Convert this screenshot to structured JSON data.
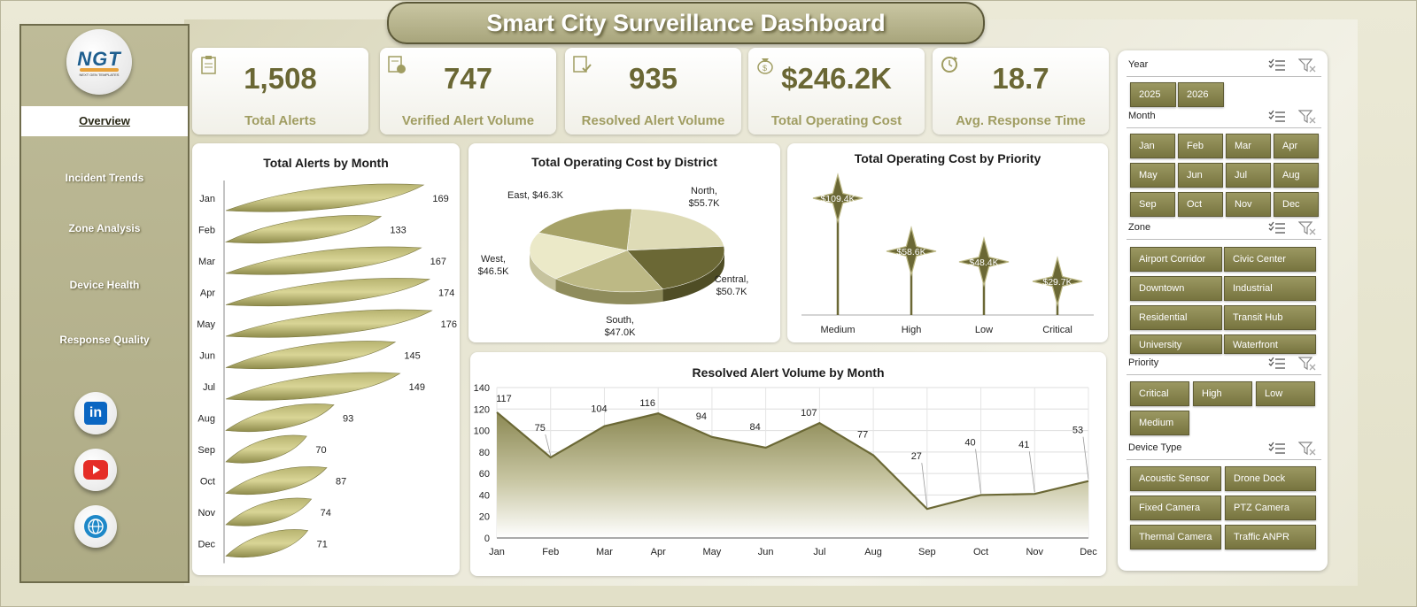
{
  "title": "Smart City Surveillance Dashboard",
  "logo": {
    "text": "NGT",
    "subtext": "NEXT GEN TEMPLATES"
  },
  "nav": {
    "items": [
      {
        "label": "Overview",
        "active": true
      },
      {
        "label": "Incident Trends",
        "active": false
      },
      {
        "label": "Zone Analysis",
        "active": false
      },
      {
        "label": "Device Health",
        "active": false
      },
      {
        "label": "Response Quality",
        "active": false
      }
    ],
    "social": [
      {
        "icon": "linkedin-icon",
        "label": "in",
        "color": "#0a66c2"
      },
      {
        "icon": "youtube-icon",
        "color": "#e52d27"
      },
      {
        "icon": "globe-icon",
        "color": "#1e88c8"
      }
    ]
  },
  "kpis": [
    {
      "value": "1,508",
      "label": "Total Alerts",
      "icon": "clipboard-icon"
    },
    {
      "value": "747",
      "label": "Verified Alert Volume",
      "icon": "verified-doc-icon"
    },
    {
      "value": "935",
      "label": "Resolved Alert Volume",
      "icon": "resolved-doc-icon"
    },
    {
      "value": "$246.2K",
      "label": "Total Operating Cost",
      "icon": "money-bag-icon"
    },
    {
      "value": "18.7",
      "label": "Avg. Response Time",
      "icon": "refresh-clock-icon"
    }
  ],
  "colors": {
    "accent": "#6a6734",
    "chip": "#8a8752",
    "panel": "#ffffff"
  },
  "chart_data": [
    {
      "type": "bar",
      "title": "Total Alerts by Month",
      "categories": [
        "Jan",
        "Feb",
        "Mar",
        "Apr",
        "May",
        "Jun",
        "Jul",
        "Aug",
        "Sep",
        "Oct",
        "Nov",
        "Dec"
      ],
      "values": [
        169,
        133,
        167,
        174,
        176,
        145,
        149,
        93,
        70,
        87,
        74,
        71
      ],
      "orientation": "horizontal"
    },
    {
      "type": "pie",
      "title": "Total Operating  Cost by District",
      "slices": [
        {
          "label": "North,",
          "value_label": "$55.7K",
          "value": 55.7
        },
        {
          "label": "Central,",
          "value_label": "$50.7K",
          "value": 50.7
        },
        {
          "label": "South,",
          "value_label": "$47.0K",
          "value": 47.0
        },
        {
          "label": "West,",
          "value_label": "$46.5K",
          "value": 46.5
        },
        {
          "label": "East,",
          "value_label": "$46.3K",
          "value": 46.3
        }
      ]
    },
    {
      "type": "bar",
      "title": "Total Operating Cost by Priority",
      "categories": [
        "Medium",
        "High",
        "Low",
        "Critical"
      ],
      "values": [
        109.4,
        58.6,
        48.4,
        29.7
      ],
      "value_labels": [
        "$109.4K",
        "$58.6K",
        "$48.4K",
        "$29.7K"
      ]
    },
    {
      "type": "area",
      "title": "Resolved Alert Volume by Month",
      "categories": [
        "Jan",
        "Feb",
        "Mar",
        "Apr",
        "May",
        "Jun",
        "Jul",
        "Aug",
        "Sep",
        "Oct",
        "Nov",
        "Dec"
      ],
      "values": [
        117,
        75,
        104,
        116,
        94,
        84,
        107,
        77,
        27,
        40,
        41,
        53
      ],
      "ylim": [
        0,
        140
      ],
      "yticks": [
        0,
        20,
        40,
        60,
        80,
        100,
        120,
        140
      ],
      "grid": true
    }
  ],
  "filters": [
    {
      "name": "Year",
      "options": [
        "2025",
        "2026"
      ]
    },
    {
      "name": "Month",
      "options": [
        "Jan",
        "Feb",
        "Mar",
        "Apr",
        "May",
        "Jun",
        "Jul",
        "Aug",
        "Sep",
        "Oct",
        "Nov",
        "Dec"
      ]
    },
    {
      "name": "Zone",
      "options": [
        "Airport Corridor",
        "Civic Center",
        "Downtown",
        "Industrial",
        "Residential",
        "Transit Hub",
        "University",
        "Waterfront"
      ]
    },
    {
      "name": "Priority",
      "options": [
        "Critical",
        "High",
        "Low",
        "Medium"
      ]
    },
    {
      "name": "Device Type",
      "options": [
        "Acoustic Sensor",
        "Drone Dock",
        "Fixed Camera",
        "PTZ Camera",
        "Thermal Camera",
        "Traffic ANPR"
      ]
    }
  ]
}
